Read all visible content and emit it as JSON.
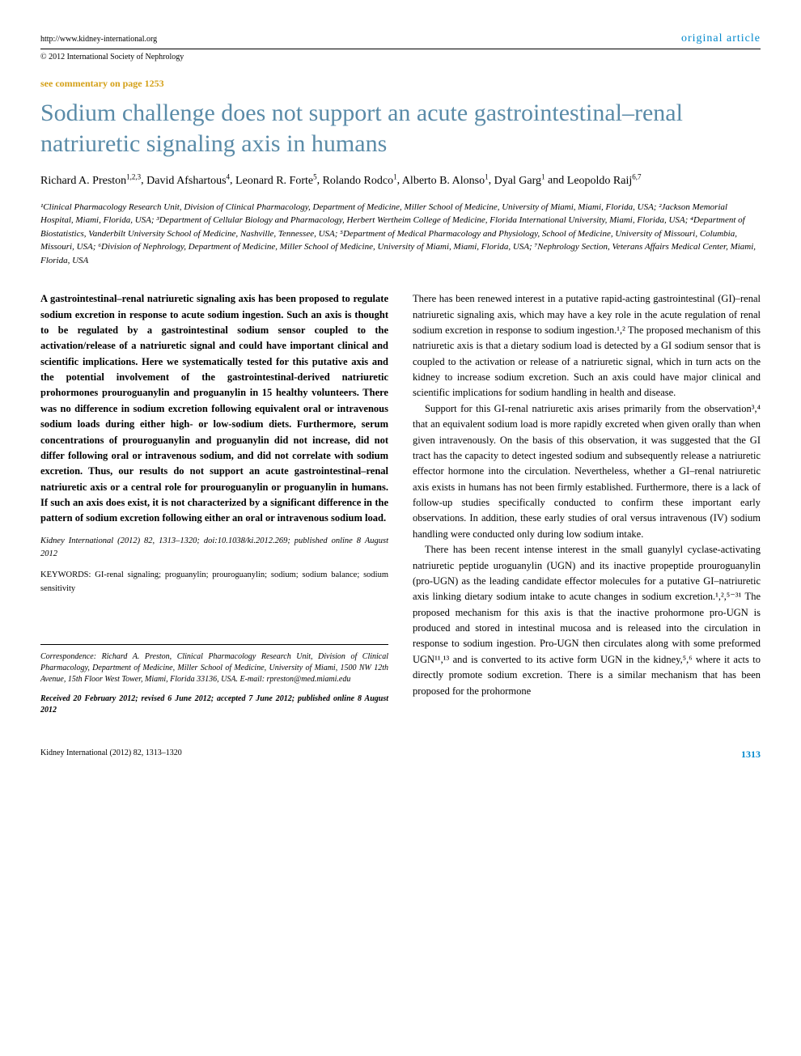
{
  "header": {
    "url": "http://www.kidney-international.org",
    "article_type": "original article",
    "copyright": "© 2012 International Society of Nephrology",
    "commentary": "see commentary on page 1253"
  },
  "title": "Sodium challenge does not support an acute gastrointestinal–renal natriuretic signaling axis in humans",
  "authors": [
    {
      "name": "Richard A. Preston",
      "sup": "1,2,3"
    },
    {
      "name": "David Afshartous",
      "sup": "4"
    },
    {
      "name": "Leonard R. Forte",
      "sup": "5"
    },
    {
      "name": "Rolando Rodco",
      "sup": "1"
    },
    {
      "name": "Alberto B. Alonso",
      "sup": "1"
    },
    {
      "name": "Dyal Garg",
      "sup": "1"
    },
    {
      "name": "Leopoldo Raij",
      "sup": "6,7"
    }
  ],
  "affiliations": "¹Clinical Pharmacology Research Unit, Division of Clinical Pharmacology, Department of Medicine, Miller School of Medicine, University of Miami, Miami, Florida, USA; ²Jackson Memorial Hospital, Miami, Florida, USA; ³Department of Cellular Biology and Pharmacology, Herbert Wertheim College of Medicine, Florida International University, Miami, Florida, USA; ⁴Department of Biostatistics, Vanderbilt University School of Medicine, Nashville, Tennessee, USA; ⁵Department of Medical Pharmacology and Physiology, School of Medicine, University of Missouri, Columbia, Missouri, USA; ⁶Division of Nephrology, Department of Medicine, Miller School of Medicine, University of Miami, Miami, Florida, USA; ⁷Nephrology Section, Veterans Affairs Medical Center, Miami, Florida, USA",
  "abstract": "A gastrointestinal–renal natriuretic signaling axis has been proposed to regulate sodium excretion in response to acute sodium ingestion. Such an axis is thought to be regulated by a gastrointestinal sodium sensor coupled to the activation/release of a natriuretic signal and could have important clinical and scientific implications. Here we systematically tested for this putative axis and the potential involvement of the gastrointestinal-derived natriuretic prohormones prouroguanylin and proguanylin in 15 healthy volunteers. There was no difference in sodium excretion following equivalent oral or intravenous sodium loads during either high- or low-sodium diets. Furthermore, serum concentrations of prouroguanylin and proguanylin did not increase, did not differ following oral or intravenous sodium, and did not correlate with sodium excretion. Thus, our results do not support an acute gastrointestinal–renal natriuretic axis or a central role for prouroguanylin or proguanylin in humans. If such an axis does exist, it is not characterized by a significant difference in the pattern of sodium excretion following either an oral or intravenous sodium load.",
  "citation": "Kidney International (2012) 82, 1313–1320; doi:10.1038/ki.2012.269; published online 8 August 2012",
  "keywords_label": "KEYWORDS:",
  "keywords": "GI-renal signaling; proguanylin; prouroguanylin; sodium; sodium balance; sodium sensitivity",
  "body": {
    "p1": "There has been renewed interest in a putative rapid-acting gastrointestinal (GI)–renal natriuretic signaling axis, which may have a key role in the acute regulation of renal sodium excretion in response to sodium ingestion.¹,² The proposed mechanism of this natriuretic axis is that a dietary sodium load is detected by a GI sodium sensor that is coupled to the activation or release of a natriuretic signal, which in turn acts on the kidney to increase sodium excretion. Such an axis could have major clinical and scientific implications for sodium handling in health and disease.",
    "p2": "Support for this GI-renal natriuretic axis arises primarily from the observation³,⁴ that an equivalent sodium load is more rapidly excreted when given orally than when given intravenously. On the basis of this observation, it was suggested that the GI tract has the capacity to detect ingested sodium and subsequently release a natriuretic effector hormone into the circulation. Nevertheless, whether a GI–renal natriuretic axis exists in humans has not been firmly established. Furthermore, there is a lack of follow-up studies specifically conducted to confirm these important early observations. In addition, these early studies of oral versus intravenous (IV) sodium handling were conducted only during low sodium intake.",
    "p3": "There has been recent intense interest in the small guanylyl cyclase-activating natriuretic peptide uroguanylin (UGN) and its inactive propeptide prouroguanylin (pro-UGN) as the leading candidate effector molecules for a putative GI–natriuretic axis linking dietary sodium intake to acute changes in sodium excretion.¹,²,⁵⁻³¹ The proposed mechanism for this axis is that the inactive prohormone pro-UGN is produced and stored in intestinal mucosa and is released into the circulation in response to sodium ingestion. Pro-UGN then circulates along with some preformed UGN¹¹,¹³ and is converted to its active form UGN in the kidney,⁵,⁶ where it acts to directly promote sodium excretion. There is a similar mechanism that has been proposed for the prohormone"
  },
  "correspondence": "Correspondence: Richard A. Preston, Clinical Pharmacology Research Unit, Division of Clinical Pharmacology, Department of Medicine, Miller School of Medicine, University of Miami, 1500 NW 12th Avenue, 15th Floor West Tower, Miami, Florida 33136, USA. E-mail: rpreston@med.miami.edu",
  "received": "Received 20 February 2012; revised 6 June 2012; accepted 7 June 2012; published online 8 August 2012",
  "footer": {
    "journal": "Kidney International (2012) 82, 1313–1320",
    "page": "1313"
  },
  "colors": {
    "title_color": "#5a8ba8",
    "accent_color": "#0088cc",
    "commentary_color": "#d4a017",
    "text_color": "#000000",
    "background": "#ffffff"
  }
}
